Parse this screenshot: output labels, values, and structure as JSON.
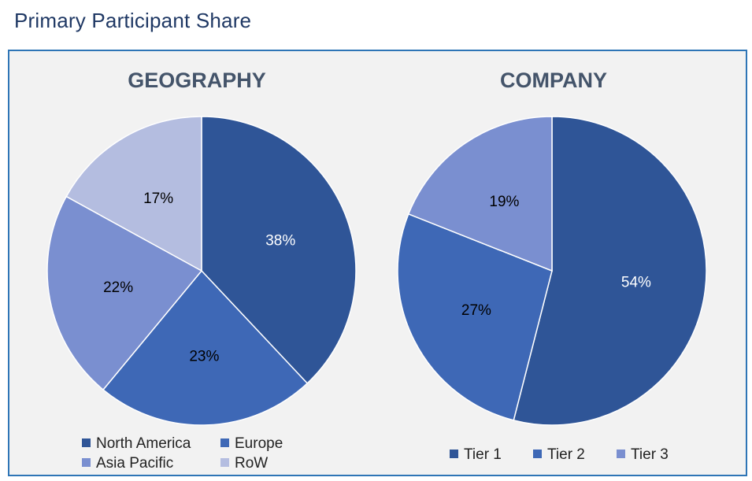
{
  "page": {
    "title": "Primary Participant Share"
  },
  "chart_data": [
    {
      "type": "pie",
      "title": "GEOGRAPHY",
      "categories": [
        "North America",
        "Europe",
        "Asia Pacific",
        "RoW"
      ],
      "values": [
        38,
        23,
        22,
        17
      ],
      "labels": [
        "38%",
        "23%",
        "22%",
        "17%"
      ],
      "colors": [
        "#2f5597",
        "#3e68b6",
        "#7a8fd0",
        "#b4bde0"
      ],
      "label_colors": [
        "#ffffff",
        "#000000",
        "#000000",
        "#000000"
      ],
      "legend_position": "bottom"
    },
    {
      "type": "pie",
      "title": "COMPANY",
      "categories": [
        "Tier 1",
        "Tier 2",
        "Tier 3"
      ],
      "values": [
        54,
        27,
        19
      ],
      "labels": [
        "54%",
        "27%",
        "19%"
      ],
      "colors": [
        "#2f5597",
        "#3e68b6",
        "#7a8fd0"
      ],
      "label_colors": [
        "#ffffff",
        "#000000",
        "#000000"
      ],
      "legend_position": "bottom"
    }
  ]
}
